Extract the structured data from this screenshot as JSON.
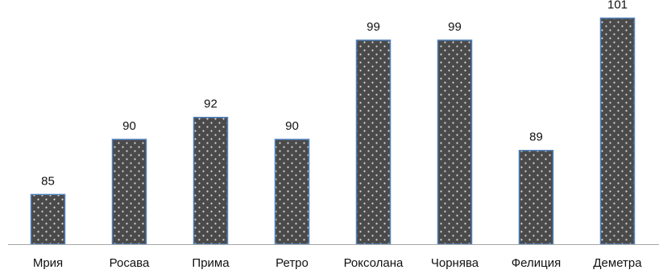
{
  "chart_data": {
    "type": "bar",
    "title": "",
    "xlabel": "",
    "ylabel": "",
    "categories": [
      "Мрия",
      "Росава",
      "Прима",
      "Ретро",
      "Роксолана",
      "Чорнява",
      "Фелиция",
      "Деметра"
    ],
    "values": [
      85,
      90,
      92,
      90,
      99,
      99,
      89,
      101
    ],
    "data_labels": [
      "85",
      "90",
      "92",
      "90",
      "99",
      "99",
      "89",
      "101"
    ],
    "ylim": [
      80.5,
      102.5
    ],
    "grid": false,
    "legend": "none",
    "colors": {
      "bar_fill": "#4a4a4a",
      "bar_dots": "#d9d9d9",
      "bar_border": "#4f81bd",
      "axis_line": "#a6a6a6"
    }
  }
}
